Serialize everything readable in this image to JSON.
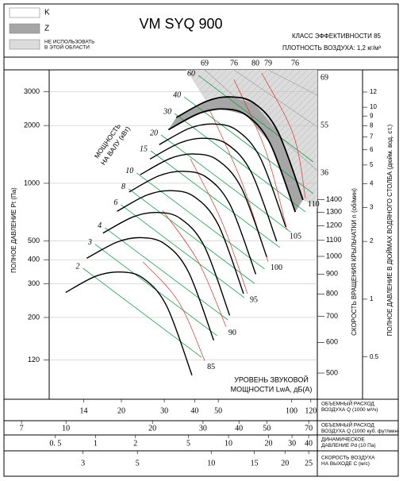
{
  "chart_data": {
    "type": "line",
    "title": "VM SYQ 900",
    "efficiency_class": "КЛАСС ЭФФЕКТИВНОСТИ 85",
    "air_density": "ПЛОТНОСТЬ ВОЗДУХА: 1,2 кг/м³",
    "legend": [
      {
        "name_lines": [
          "K"
        ],
        "color": "#ffffff"
      },
      {
        "name_lines": [
          "Z"
        ],
        "color": "#a6a6a6"
      },
      {
        "name_lines": [
          "НЕ ИСПОЛЬЗОВАТЬ",
          "В ЭТОЙ ОБЛАСТИ"
        ],
        "color": "#dcdcdc"
      }
    ],
    "log_x": true,
    "log_y": true,
    "grid": true,
    "ylabel": "ПОЛНОЕ ДАВЛЕНИЕ Pt (Па)",
    "ylim": [
      75,
      3900
    ],
    "yticks": [
      3000,
      2000,
      1000,
      500,
      400,
      300,
      200,
      120
    ],
    "xlabel": [
      "ОБЪЕМНЫЙ РАСХОД",
      "ВОЗДУХА Q (1000 м³/ч)"
    ],
    "xlim": [
      10.1,
      127.6
    ],
    "xticks": [
      14,
      20,
      30,
      40,
      50,
      100,
      120
    ],
    "x2label": [
      "ОБЪЕМНЫЙ РАСХОД",
      "ВОЗДУХА Q (1000 куб. фут/мин)"
    ],
    "x2lim": [
      6.2,
      75
    ],
    "x2ticks": [
      7,
      10,
      20,
      30,
      40,
      50,
      70
    ],
    "x3label": [
      "ДИНАМИЧЕСКОЕ",
      "ДАВЛЕНИЕ Pd (10 Па)"
    ],
    "x3lim": [
      0.214,
      46.5
    ],
    "x3ticks": [
      {
        "value": 0.5,
        "label": "0. 5"
      },
      1,
      2,
      5,
      10,
      20,
      30,
      40
    ],
    "x4label": [
      "СКОРОСТЬ ВОЗДУХА",
      "НА ВЫХОДЕ C (м/с)"
    ],
    "x4lim": [
      1.46,
      27.1
    ],
    "x4ticks": [
      3,
      5,
      10,
      15,
      20,
      25
    ],
    "y2label": "СКОРОСТЬ ВРАЩЕНИЯ КРЫЛЬЧАТКИ  n (об/мин)",
    "y2lim": [
      428,
      3028
    ],
    "y2ticks": [
      1400,
      1300,
      1200,
      1100,
      1000,
      900,
      800,
      700,
      600,
      500
    ],
    "y3label": "ПОЛНОЕ ДАВЛЕНИЕ В ДЮЙМАХ ВОДЯНОГО СТОЛБА (дюйм. вод. ст.)",
    "y3lim": [
      0.301,
      15.66
    ],
    "y3ticks": [
      12,
      10,
      9,
      8,
      7,
      6,
      5,
      4,
      3,
      2,
      1,
      0.5
    ],
    "series": [
      {
        "color": "#000000",
        "x": [
          33.6,
          44.6,
          55.9,
          70,
          87.7,
          111.4
        ],
        "values": [
          2200,
          2670,
          2820,
          2620,
          1870,
          820
        ]
      },
      {
        "color": "#000000",
        "x": [
          31.2,
          41.5,
          52,
          65.1,
          81.6,
          103.6
        ],
        "values": [
          1903,
          2309,
          2439,
          2266,
          1617,
          709
        ]
      },
      {
        "color": "#000000",
        "x": [
          28.6,
          37.9,
          47.5,
          59.5,
          74.5,
          94.7
        ],
        "values": [
          1590,
          1929,
          2037,
          1893,
          1351,
          592
        ]
      },
      {
        "color": "#000000",
        "x": [
          26.2,
          34.8,
          43.6,
          54.6,
          68.4,
          86.9
        ],
        "values": [
          1338,
          1624,
          1716,
          1594,
          1138,
          499
        ]
      },
      {
        "color": "#000000",
        "x": [
          23.9,
          31.7,
          39.7,
          49.7,
          62.3,
          79.1
        ],
        "values": [
          1109,
          1346,
          1422,
          1321,
          943,
          413
        ]
      },
      {
        "color": "#000000",
        "x": [
          21.5,
          28.5,
          35.8,
          44.8,
          56.1,
          71.3
        ],
        "values": [
          901,
          1094,
          1155,
          1073,
          766,
          336
        ]
      },
      {
        "color": "#000000",
        "x": [
          19.2,
          25.4,
          31.9,
          39.9,
          50,
          63.5
        ],
        "values": [
          715,
          867,
          916,
          851,
          608,
          266
        ]
      },
      {
        "color": "#000000",
        "x": [
          16.8,
          22.3,
          28,
          35,
          43.9,
          55.7
        ],
        "values": [
          550,
          668,
          705,
          655,
          468,
          205
        ]
      },
      {
        "color": "#000000",
        "x": [
          14.4,
          19.2,
          24,
          30.1,
          37.7,
          47.9
        ],
        "values": [
          407,
          494,
          521,
          484,
          346,
          152
        ]
      },
      {
        "color": "#000000",
        "x": [
          11.8,
          15.6,
          19.6,
          24.5,
          30.7,
          39
        ],
        "values": [
          270,
          327,
          345,
          321,
          229,
          100
        ]
      }
    ],
    "power": {
      "label": [
        "МОЩНОСТЬ",
        "НА ВАЛУ (кВт)"
      ],
      "color": "#1e9e4a",
      "lines": [
        {
          "value": 60,
          "x": [
            41.4,
            122.8
          ],
          "y": [
            3648,
            1293
          ]
        },
        {
          "value": 40,
          "x": [
            36.2,
            122.8
          ],
          "y": [
            2820,
            884
          ]
        },
        {
          "value": 30,
          "x": [
            33.1,
            114
          ],
          "y": [
            2310,
            710
          ]
        },
        {
          "value": 20,
          "x": [
            29.1,
            99.3
          ],
          "y": [
            1787,
            556
          ]
        },
        {
          "value": 15,
          "x": [
            26.4,
            89.5
          ],
          "y": [
            1477,
            463
          ]
        },
        {
          "value": 10,
          "x": [
            23.1,
            77.4
          ],
          "y": [
            1132,
            358
          ]
        },
        {
          "value": 8,
          "x": [
            21.4,
            70.4
          ],
          "y": [
            936,
            301
          ]
        },
        {
          "value": 6,
          "x": [
            19.9,
            63.9
          ],
          "y": [
            774,
            254
          ]
        },
        {
          "value": 4,
          "x": [
            17.1,
            54.8
          ],
          "y": [
            587,
            194
          ]
        },
        {
          "value": 3,
          "x": [
            15.6,
            49.4
          ],
          "y": [
            481,
            161
          ]
        },
        {
          "value": 2,
          "x": [
            13.9,
            42.7
          ],
          "y": [
            361,
            124
          ]
        }
      ]
    },
    "sound": {
      "label": [
        "УРОВЕНЬ ЗВУКОВОЙ",
        "МОЩНОСТИ LwA, дБ(A)"
      ],
      "color": "#e0312d",
      "lines": [
        {
          "value": 110,
          "x": [
            114,
            101.8,
            75.4
          ],
          "y": [
            835,
            1787,
            3753
          ]
        },
        {
          "value": 105,
          "x": [
            95.9,
            78.3,
            58
          ],
          "y": [
            570,
            1477,
            3478
          ]
        },
        {
          "value": 100,
          "x": [
            80.1,
            62.5,
            46.3
          ],
          "y": [
            390,
            1009,
            2377
          ]
        },
        {
          "value": 95,
          "x": [
            65.9,
            51.8,
            38.4
          ],
          "y": [
            266,
            627,
            1343
          ]
        },
        {
          "value": 90,
          "x": [
            53.8,
            41.4,
            29.5
          ],
          "y": [
            179,
            390,
            723
          ]
        },
        {
          "value": 85,
          "x": [
            44,
            34.3,
            24.5
          ],
          "y": [
            119,
            242,
            390
          ]
        }
      ]
    },
    "efficiency_top": [
      69,
      76,
      80,
      79,
      76
    ],
    "efficiency_right": [
      69,
      55,
      36
    ]
  }
}
